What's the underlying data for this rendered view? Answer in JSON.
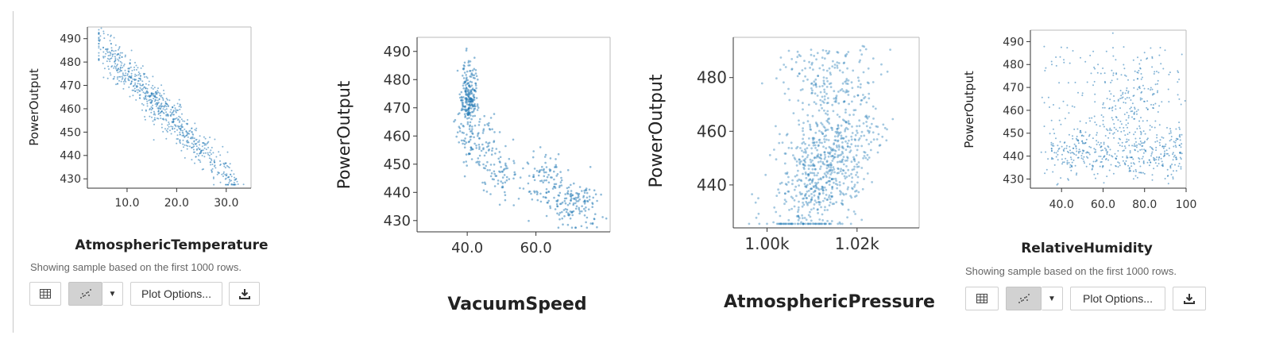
{
  "colors": {
    "point": "#1f77b4",
    "axis": "#333333",
    "frame": "#bbbbbb"
  },
  "controls": {
    "sample_note": "Showing sample based on the first 1000 rows.",
    "table_view_icon": "table-icon",
    "scatter_view_icon": "scatter-icon",
    "dropdown_icon": "caret-down-icon",
    "plot_options_label": "Plot Options...",
    "download_icon": "download-icon"
  },
  "chart_data": [
    {
      "type": "scatter",
      "title": "",
      "xlabel": "AtmosphericTemperature",
      "ylabel": "PowerOutput",
      "xlim": [
        2,
        35
      ],
      "ylim": [
        426,
        495
      ],
      "xticks": [
        "10.0",
        "20.0",
        "30.0"
      ],
      "xtick_values": [
        10,
        20,
        30
      ],
      "yticks": [
        "430",
        "440",
        "450",
        "460",
        "470",
        "480",
        "490"
      ],
      "ytick_values": [
        430,
        440,
        450,
        460,
        470,
        480,
        490
      ],
      "grid": false,
      "legend": "none",
      "sample_rows": 1000,
      "trend": "strong negative linear: PowerOutput ≈ 497 − 2.17 × AtmosphericTemperature",
      "anchor_points": [
        {
          "x": 5.0,
          "y": 494.0
        },
        {
          "x": 8.0,
          "y": 484.0
        },
        {
          "x": 10.0,
          "y": 478.0
        },
        {
          "x": 13.0,
          "y": 469.0
        },
        {
          "x": 15.0,
          "y": 463.0
        },
        {
          "x": 18.0,
          "y": 457.0
        },
        {
          "x": 20.0,
          "y": 451.0
        },
        {
          "x": 22.0,
          "y": 447.0
        },
        {
          "x": 25.0,
          "y": 442.0
        },
        {
          "x": 27.0,
          "y": 438.0
        },
        {
          "x": 29.0,
          "y": 434.0
        },
        {
          "x": 31.0,
          "y": 430.0
        }
      ]
    },
    {
      "type": "scatter",
      "title": "",
      "xlabel": "VacuumSpeed",
      "ylabel": "PowerOutput",
      "xlim": [
        25.4,
        81.6
      ],
      "ylim": [
        426,
        495
      ],
      "xticks": [
        "40.0",
        "60.0"
      ],
      "xtick_values": [
        40,
        60
      ],
      "yticks": [
        "430",
        "440",
        "450",
        "460",
        "470",
        "480",
        "490"
      ],
      "ytick_values": [
        430,
        440,
        450,
        460,
        470,
        480,
        490
      ],
      "grid": false,
      "legend": "none",
      "sample_rows": 1000,
      "trend": "negative, clustered: dense column near 39–42 at 460–485, then declining to ~432 near 70–80",
      "anchor_points": [
        {
          "x": 39.5,
          "y": 480.0
        },
        {
          "x": 40.5,
          "y": 472.0
        },
        {
          "x": 41.0,
          "y": 465.0
        },
        {
          "x": 44.0,
          "y": 460.0
        },
        {
          "x": 48.0,
          "y": 452.0
        },
        {
          "x": 52.0,
          "y": 445.0
        },
        {
          "x": 58.0,
          "y": 447.0
        },
        {
          "x": 62.0,
          "y": 444.0
        },
        {
          "x": 66.0,
          "y": 440.0
        },
        {
          "x": 70.0,
          "y": 435.0
        },
        {
          "x": 74.0,
          "y": 432.0
        },
        {
          "x": 78.0,
          "y": 431.0
        }
      ]
    },
    {
      "type": "scatter",
      "title": "",
      "xlabel": "AtmosphericPressure",
      "ylabel": "PowerOutput",
      "xlim": [
        992.5,
        1033.8
      ],
      "ylim": [
        424,
        495
      ],
      "xticks": [
        "1.00k",
        "1.02k"
      ],
      "xtick_values": [
        1000,
        1020
      ],
      "yticks": [
        "440",
        "460",
        "480"
      ],
      "ytick_values": [
        440,
        460,
        480
      ],
      "grid": false,
      "legend": "none",
      "sample_rows": 1000,
      "trend": "weak positive: cloud centered near 1013, PowerOutput 428–492",
      "anchor_points": [
        {
          "x": 1005.0,
          "y": 437.0
        },
        {
          "x": 1008.0,
          "y": 440.0
        },
        {
          "x": 1010.0,
          "y": 444.0
        },
        {
          "x": 1012.0,
          "y": 450.0
        },
        {
          "x": 1014.0,
          "y": 456.0
        },
        {
          "x": 1016.0,
          "y": 462.0
        },
        {
          "x": 1018.0,
          "y": 466.0
        },
        {
          "x": 1021.0,
          "y": 470.0
        },
        {
          "x": 1024.0,
          "y": 474.0
        },
        {
          "x": 1027.0,
          "y": 478.0
        }
      ]
    },
    {
      "type": "scatter",
      "title": "",
      "xlabel": "RelativeHumidity",
      "ylabel": "PowerOutput",
      "xlim": [
        25,
        100
      ],
      "ylim": [
        426,
        495
      ],
      "xticks": [
        "40.0",
        "60.0",
        "80.0",
        "100"
      ],
      "xtick_values": [
        40,
        60,
        80,
        100
      ],
      "yticks": [
        "430",
        "440",
        "450",
        "460",
        "470",
        "480",
        "490"
      ],
      "ytick_values": [
        430,
        440,
        450,
        460,
        470,
        480,
        490
      ],
      "grid": false,
      "legend": "none",
      "sample_rows": 1000,
      "trend": "weak positive with wide spread; dense band at 435–450 and upper cluster near 80–95 humidity",
      "anchor_points": [
        {
          "x": 40.0,
          "y": 440.0
        },
        {
          "x": 50.0,
          "y": 443.0
        },
        {
          "x": 60.0,
          "y": 446.0
        },
        {
          "x": 70.0,
          "y": 450.0
        },
        {
          "x": 80.0,
          "y": 458.0
        },
        {
          "x": 85.0,
          "y": 470.0
        },
        {
          "x": 90.0,
          "y": 478.0
        },
        {
          "x": 95.0,
          "y": 465.0
        }
      ]
    }
  ]
}
